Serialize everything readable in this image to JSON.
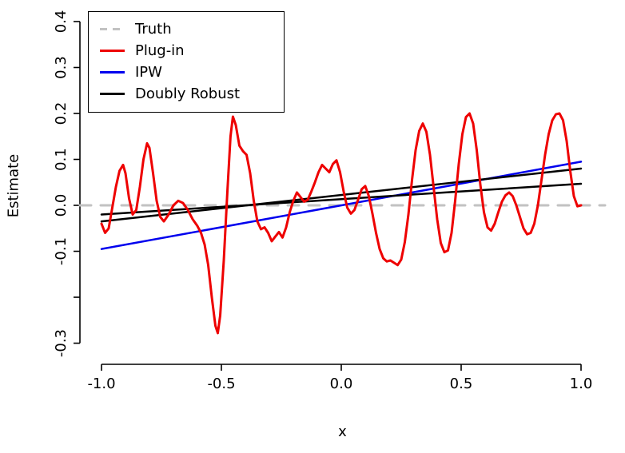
{
  "figure": {
    "background": "#ffffff"
  },
  "chart_data": {
    "type": "line",
    "title": "",
    "xlabel": "x",
    "ylabel": "Estimate",
    "xlim": [
      -1.09,
      1.1
    ],
    "ylim": [
      -0.346,
      0.433
    ],
    "grid": false,
    "x_ticks": {
      "values": [
        -1.0,
        -0.5,
        0.0,
        0.5,
        1.0
      ],
      "labels": [
        "-1.0",
        "-0.5",
        "0.0",
        "0.5",
        "1.0"
      ]
    },
    "y_ticks": {
      "values": [
        0.4,
        0.3,
        0.2,
        0.1,
        0.0,
        -0.1,
        -0.2,
        -0.3
      ],
      "labels": [
        "0.4",
        "0.3",
        "0.2",
        "0.1",
        "0.0",
        "-0.1",
        "",
        "-0.3"
      ]
    },
    "legend": {
      "position": "top-left",
      "entries": [
        {
          "label": "Truth",
          "color": "#c2c2c2",
          "dash": "dashed"
        },
        {
          "label": "Plug-in",
          "color": "#ee0000",
          "dash": "solid"
        },
        {
          "label": "IPW",
          "color": "#0000ee",
          "dash": "solid"
        },
        {
          "label": "Doubly Robust",
          "color": "#000000",
          "dash": "solid"
        }
      ]
    },
    "series": [
      {
        "name": "Truth",
        "color": "#c2c2c2",
        "style": "dashed",
        "width": 3,
        "points": [
          [
            -1.09,
            0.0
          ],
          [
            1.1,
            0.0
          ]
        ]
      },
      {
        "name": "IPW",
        "color": "#0000ee",
        "style": "solid",
        "width": 2.5,
        "points": [
          [
            -1.0,
            -0.095
          ],
          [
            1.0,
            0.095
          ]
        ]
      },
      {
        "name": "Doubly Robust",
        "color": "#000000",
        "style": "solid",
        "width": 2.5,
        "points": [
          [
            -1.0,
            -0.035
          ],
          [
            1.0,
            0.08
          ]
        ]
      },
      {
        "name": "Doubly Robust",
        "color": "#000000",
        "style": "solid",
        "width": 2.5,
        "points": [
          [
            -1.0,
            -0.02
          ],
          [
            1.0,
            0.047
          ]
        ]
      },
      {
        "name": "Plug-in",
        "color": "#ee0000",
        "style": "solid",
        "width": 3,
        "points": [
          [
            -1.0,
            -0.04
          ],
          [
            -0.985,
            -0.06
          ],
          [
            -0.97,
            -0.05
          ],
          [
            -0.955,
            -0.005
          ],
          [
            -0.94,
            0.04
          ],
          [
            -0.925,
            0.075
          ],
          [
            -0.91,
            0.088
          ],
          [
            -0.9,
            0.07
          ],
          [
            -0.885,
            0.015
          ],
          [
            -0.87,
            -0.02
          ],
          [
            -0.855,
            -0.01
          ],
          [
            -0.84,
            0.04
          ],
          [
            -0.825,
            0.1
          ],
          [
            -0.81,
            0.135
          ],
          [
            -0.8,
            0.125
          ],
          [
            -0.785,
            0.07
          ],
          [
            -0.77,
            0.01
          ],
          [
            -0.755,
            -0.025
          ],
          [
            -0.74,
            -0.035
          ],
          [
            -0.72,
            -0.02
          ],
          [
            -0.7,
            0.0
          ],
          [
            -0.68,
            0.01
          ],
          [
            -0.66,
            0.005
          ],
          [
            -0.64,
            -0.01
          ],
          [
            -0.62,
            -0.03
          ],
          [
            -0.6,
            -0.045
          ],
          [
            -0.585,
            -0.06
          ],
          [
            -0.57,
            -0.085
          ],
          [
            -0.555,
            -0.13
          ],
          [
            -0.54,
            -0.2
          ],
          [
            -0.525,
            -0.262
          ],
          [
            -0.515,
            -0.278
          ],
          [
            -0.505,
            -0.24
          ],
          [
            -0.49,
            -0.12
          ],
          [
            -0.475,
            0.03
          ],
          [
            -0.462,
            0.15
          ],
          [
            -0.452,
            0.193
          ],
          [
            -0.44,
            0.175
          ],
          [
            -0.425,
            0.13
          ],
          [
            -0.41,
            0.118
          ],
          [
            -0.395,
            0.11
          ],
          [
            -0.38,
            0.07
          ],
          [
            -0.365,
            0.01
          ],
          [
            -0.35,
            -0.035
          ],
          [
            -0.335,
            -0.052
          ],
          [
            -0.32,
            -0.048
          ],
          [
            -0.305,
            -0.06
          ],
          [
            -0.29,
            -0.078
          ],
          [
            -0.275,
            -0.068
          ],
          [
            -0.26,
            -0.058
          ],
          [
            -0.245,
            -0.07
          ],
          [
            -0.23,
            -0.048
          ],
          [
            -0.215,
            -0.015
          ],
          [
            -0.2,
            0.01
          ],
          [
            -0.185,
            0.028
          ],
          [
            -0.17,
            0.018
          ],
          [
            -0.155,
            0.008
          ],
          [
            -0.14,
            0.012
          ],
          [
            -0.125,
            0.03
          ],
          [
            -0.11,
            0.05
          ],
          [
            -0.095,
            0.072
          ],
          [
            -0.08,
            0.088
          ],
          [
            -0.065,
            0.08
          ],
          [
            -0.05,
            0.072
          ],
          [
            -0.035,
            0.09
          ],
          [
            -0.02,
            0.098
          ],
          [
            -0.005,
            0.072
          ],
          [
            0.01,
            0.03
          ],
          [
            0.025,
            -0.005
          ],
          [
            0.04,
            -0.018
          ],
          [
            0.055,
            -0.01
          ],
          [
            0.07,
            0.012
          ],
          [
            0.085,
            0.035
          ],
          [
            0.1,
            0.042
          ],
          [
            0.115,
            0.02
          ],
          [
            0.13,
            -0.018
          ],
          [
            0.145,
            -0.06
          ],
          [
            0.16,
            -0.095
          ],
          [
            0.175,
            -0.115
          ],
          [
            0.19,
            -0.122
          ],
          [
            0.205,
            -0.12
          ],
          [
            0.22,
            -0.125
          ],
          [
            0.235,
            -0.13
          ],
          [
            0.25,
            -0.118
          ],
          [
            0.265,
            -0.08
          ],
          [
            0.28,
            -0.02
          ],
          [
            0.295,
            0.055
          ],
          [
            0.31,
            0.12
          ],
          [
            0.325,
            0.162
          ],
          [
            0.34,
            0.178
          ],
          [
            0.355,
            0.16
          ],
          [
            0.37,
            0.11
          ],
          [
            0.385,
            0.04
          ],
          [
            0.4,
            -0.03
          ],
          [
            0.415,
            -0.082
          ],
          [
            0.43,
            -0.102
          ],
          [
            0.445,
            -0.098
          ],
          [
            0.46,
            -0.06
          ],
          [
            0.475,
            0.01
          ],
          [
            0.49,
            0.09
          ],
          [
            0.505,
            0.155
          ],
          [
            0.52,
            0.192
          ],
          [
            0.535,
            0.2
          ],
          [
            0.55,
            0.178
          ],
          [
            0.565,
            0.12
          ],
          [
            0.58,
            0.045
          ],
          [
            0.595,
            -0.015
          ],
          [
            0.61,
            -0.048
          ],
          [
            0.625,
            -0.055
          ],
          [
            0.64,
            -0.04
          ],
          [
            0.655,
            -0.015
          ],
          [
            0.67,
            0.008
          ],
          [
            0.685,
            0.022
          ],
          [
            0.7,
            0.028
          ],
          [
            0.715,
            0.02
          ],
          [
            0.73,
            0.0
          ],
          [
            0.745,
            -0.025
          ],
          [
            0.76,
            -0.05
          ],
          [
            0.775,
            -0.063
          ],
          [
            0.79,
            -0.06
          ],
          [
            0.805,
            -0.04
          ],
          [
            0.82,
            0.0
          ],
          [
            0.835,
            0.055
          ],
          [
            0.85,
            0.11
          ],
          [
            0.865,
            0.155
          ],
          [
            0.88,
            0.185
          ],
          [
            0.895,
            0.198
          ],
          [
            0.91,
            0.2
          ],
          [
            0.925,
            0.185
          ],
          [
            0.94,
            0.14
          ],
          [
            0.955,
            0.075
          ],
          [
            0.97,
            0.02
          ],
          [
            0.985,
            -0.002
          ],
          [
            1.0,
            0.0
          ]
        ]
      }
    ]
  }
}
